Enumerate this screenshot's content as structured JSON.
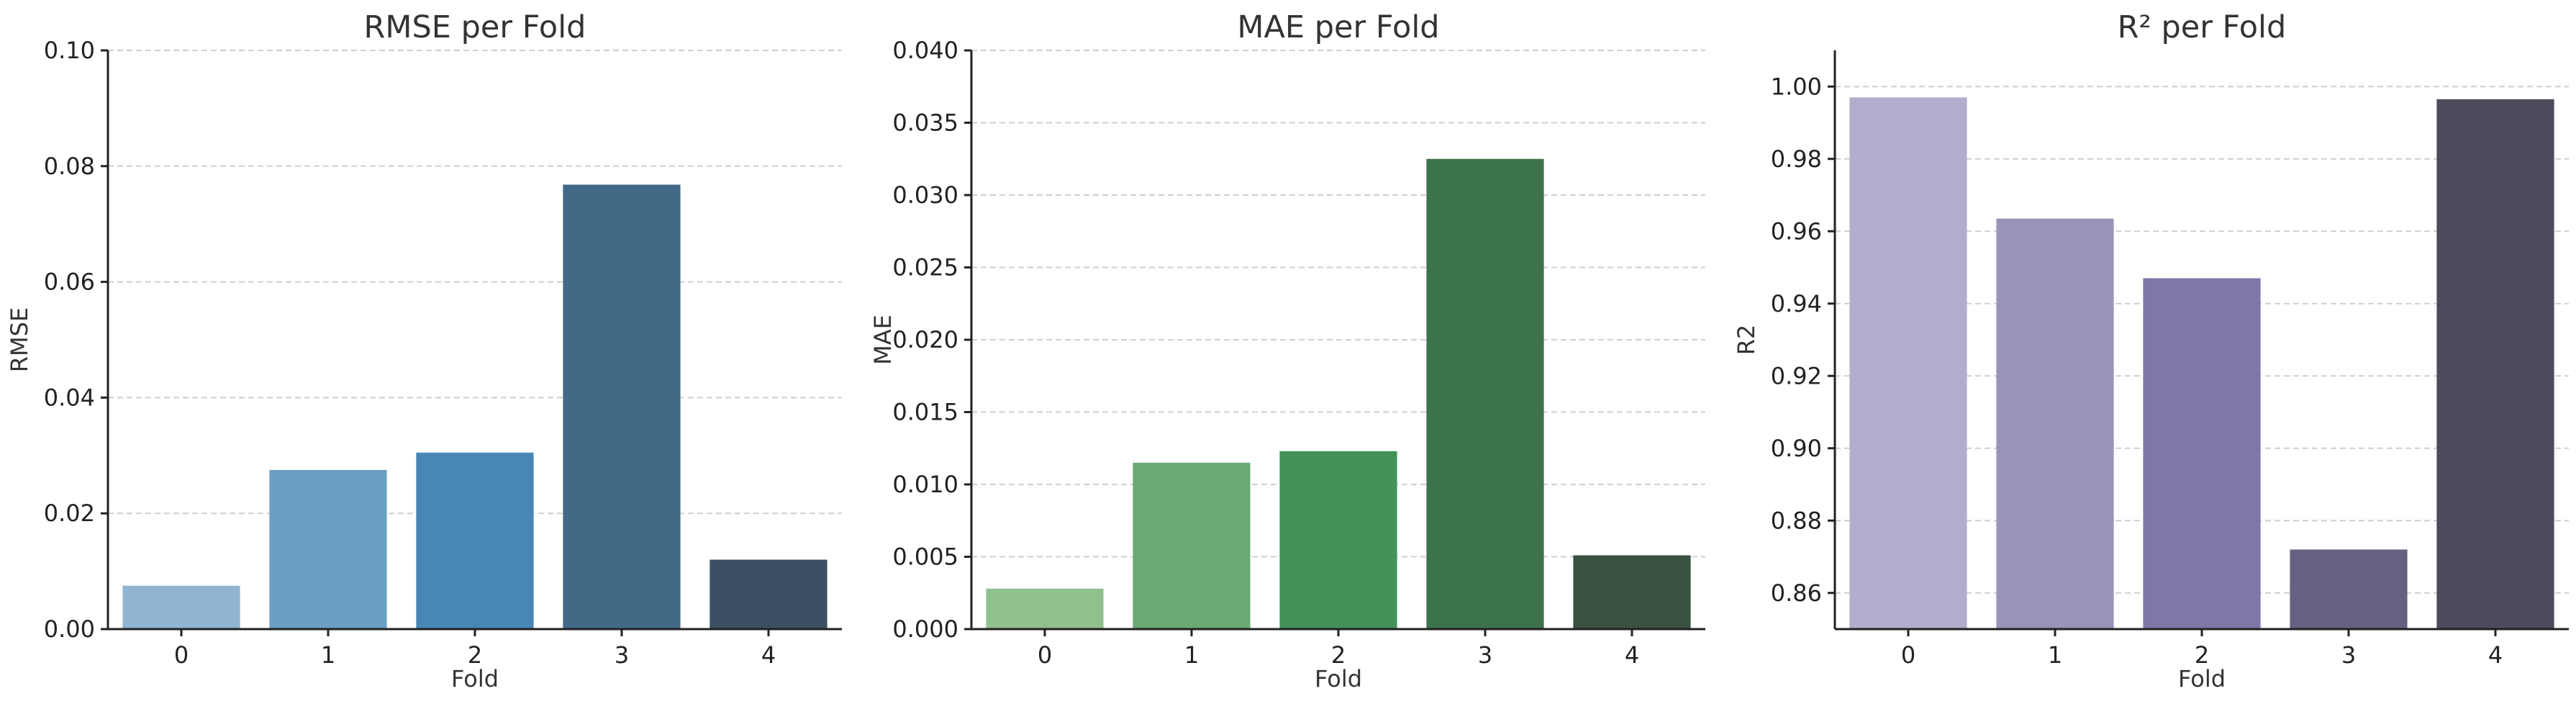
{
  "chart_data": [
    {
      "type": "bar",
      "title": "RMSE per Fold",
      "xlabel": "Fold",
      "ylabel": "RMSE",
      "categories": [
        "0",
        "1",
        "2",
        "3",
        "4"
      ],
      "values": [
        0.0075,
        0.0275,
        0.0305,
        0.0768,
        0.012
      ],
      "ylim": [
        0,
        0.1
      ],
      "yticks": [
        "0.00",
        "0.02",
        "0.04",
        "0.06",
        "0.08",
        "0.10"
      ],
      "colors": [
        "#8fb5d1",
        "#6a9fc1",
        "#4886b6",
        "#416a87",
        "#3a4f61"
      ],
      "grid": true
    },
    {
      "type": "bar",
      "title": "MAE per Fold",
      "xlabel": "Fold",
      "ylabel": "MAE",
      "categories": [
        "0",
        "1",
        "2",
        "3",
        "4"
      ],
      "values": [
        0.0028,
        0.0115,
        0.0123,
        0.0325,
        0.0051
      ],
      "ylim": [
        0,
        0.04
      ],
      "yticks": [
        "0.000",
        "0.005",
        "0.010",
        "0.015",
        "0.020",
        "0.025",
        "0.030",
        "0.035",
        "0.040"
      ],
      "colors": [
        "#91c08f",
        "#6aa974",
        "#44925a",
        "#3d734b",
        "#39523f"
      ],
      "grid": true
    },
    {
      "type": "bar",
      "title": "R² per Fold",
      "xlabel": "Fold",
      "ylabel": "R2",
      "categories": [
        "0",
        "1",
        "2",
        "3",
        "4"
      ],
      "values": [
        0.997,
        0.9635,
        0.947,
        0.872,
        0.9965
      ],
      "ylim": [
        0.85,
        1.01
      ],
      "yticks": [
        "0.86",
        "0.88",
        "0.90",
        "0.92",
        "0.94",
        "0.96",
        "0.98",
        "1.00"
      ],
      "colors": [
        "#b1aecd",
        "#9893b9",
        "#7e77a8",
        "#686081",
        "#4d4a5c"
      ],
      "grid": true
    }
  ]
}
